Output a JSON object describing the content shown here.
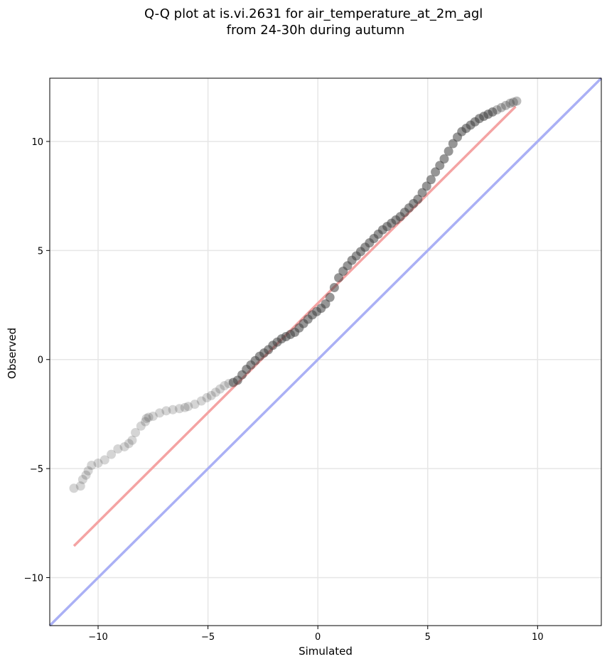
{
  "chart_data": {
    "type": "scatter",
    "title": "Q-Q plot at is.vi.2631 for air_temperature_at_2m_agl\nfrom 24-30h during autumn",
    "xlabel": "Simulated",
    "ylabel": "Observed",
    "xlim": [
      -12.2,
      12.9
    ],
    "ylim": [
      -12.2,
      12.9
    ],
    "xticks": [
      -10,
      -5,
      0,
      5,
      10
    ],
    "yticks": [
      -10,
      -5,
      0,
      5,
      10
    ],
    "xtick_labels": [
      "−10",
      "−5",
      "0",
      "5",
      "10"
    ],
    "ytick_labels": [
      "−10",
      "−5",
      "0",
      "5",
      "10"
    ],
    "grid": true,
    "colors": {
      "points": "#404040",
      "fit_line": "#f4a3a3",
      "identity_line": "#aab0f5",
      "grid": "#e6e6e6"
    },
    "identity_line": {
      "x": [
        -12.2,
        12.9
      ],
      "y": [
        -12.2,
        12.9
      ]
    },
    "fit_line": {
      "x": [
        -11.1,
        9.0
      ],
      "y": [
        -8.55,
        11.6
      ]
    },
    "series": [
      {
        "x": [
          -11.1,
          -10.8,
          -10.7,
          -10.55,
          -10.45,
          -10.3,
          -10.0,
          -9.7,
          -9.4,
          -9.1,
          -8.8,
          -8.6,
          -8.45,
          -8.3,
          -8.05,
          -7.85,
          -7.8,
          -7.7,
          -7.5,
          -7.2,
          -6.9,
          -6.6,
          -6.3,
          -6.05,
          -5.9,
          -5.6,
          -5.3,
          -5.05,
          -4.85,
          -4.65,
          -4.45,
          -4.25,
          -4.05,
          -3.85,
          -3.65,
          -3.45,
          -3.25,
          -3.05,
          -2.85,
          -2.65,
          -2.45,
          -2.25,
          -2.05,
          -1.85,
          -1.65,
          -1.45,
          -1.25,
          -1.05,
          -0.85,
          -0.65,
          -0.45,
          -0.25,
          -0.05,
          0.15,
          0.35,
          0.55,
          0.75,
          0.95,
          1.15,
          1.35,
          1.55,
          1.75,
          1.95,
          2.15,
          2.35,
          2.55,
          2.75,
          2.95,
          3.15,
          3.35,
          3.55,
          3.75,
          3.95,
          4.15,
          4.35,
          4.55,
          4.75,
          4.95,
          5.15,
          5.35,
          5.55,
          5.75,
          5.95,
          6.15,
          6.35,
          6.55,
          6.75,
          6.95,
          7.15,
          7.35,
          7.55,
          7.75,
          7.95,
          8.15,
          8.35,
          8.55,
          8.75,
          8.9,
          9.05
        ],
        "y": [
          -5.9,
          -5.8,
          -5.5,
          -5.3,
          -5.1,
          -4.85,
          -4.75,
          -4.6,
          -4.35,
          -4.1,
          -4.0,
          -3.85,
          -3.7,
          -3.35,
          -3.05,
          -2.85,
          -2.7,
          -2.65,
          -2.6,
          -2.45,
          -2.35,
          -2.3,
          -2.25,
          -2.2,
          -2.15,
          -2.05,
          -1.9,
          -1.75,
          -1.65,
          -1.5,
          -1.35,
          -1.2,
          -1.1,
          -1.05,
          -0.95,
          -0.7,
          -0.45,
          -0.25,
          -0.05,
          0.15,
          0.3,
          0.45,
          0.65,
          0.8,
          0.95,
          1.05,
          1.15,
          1.25,
          1.45,
          1.65,
          1.85,
          2.05,
          2.2,
          2.35,
          2.55,
          2.85,
          3.3,
          3.75,
          4.05,
          4.3,
          4.55,
          4.75,
          4.95,
          5.15,
          5.35,
          5.55,
          5.75,
          5.95,
          6.1,
          6.25,
          6.4,
          6.55,
          6.75,
          6.95,
          7.15,
          7.35,
          7.65,
          7.95,
          8.25,
          8.6,
          8.9,
          9.2,
          9.55,
          9.9,
          10.2,
          10.45,
          10.6,
          10.75,
          10.9,
          11.05,
          11.15,
          11.25,
          11.35,
          11.45,
          11.55,
          11.65,
          11.75,
          11.8,
          11.85
        ]
      }
    ]
  }
}
